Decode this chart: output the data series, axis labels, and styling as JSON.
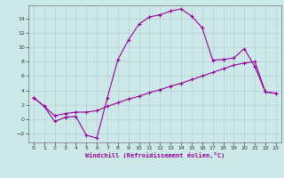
{
  "xlabel": "Windchill (Refroidissement éolien,°C)",
  "line_color": "#990099",
  "bg_color": "#cce8e8",
  "grid_color": "#aacccc",
  "ylim": [
    -3.2,
    15.8
  ],
  "xlim": [
    -0.5,
    23.5
  ],
  "yticks": [
    -2,
    0,
    2,
    4,
    6,
    8,
    10,
    12,
    14
  ],
  "xticks": [
    0,
    1,
    2,
    3,
    4,
    5,
    6,
    7,
    8,
    9,
    10,
    11,
    12,
    13,
    14,
    15,
    16,
    17,
    18,
    19,
    20,
    21,
    22,
    23
  ],
  "windchill_x": [
    0,
    1,
    2,
    3,
    4,
    5,
    6,
    7,
    8,
    9,
    10,
    11,
    12,
    13,
    14,
    15,
    16,
    17,
    18,
    19,
    20,
    21,
    22,
    23
  ],
  "windchill_y": [
    3.0,
    1.8,
    -0.3,
    0.3,
    0.4,
    -2.2,
    -2.6,
    3.0,
    8.3,
    11.0,
    13.2,
    14.2,
    14.5,
    15.0,
    15.3,
    14.3,
    12.7,
    8.2,
    8.3,
    8.5,
    9.8,
    7.3,
    3.8,
    3.6
  ],
  "temperature_x": [
    0,
    1,
    2,
    3,
    4,
    5,
    6,
    7,
    8,
    9,
    10,
    11,
    12,
    13,
    14,
    15,
    16,
    17,
    18,
    19,
    20,
    21,
    22,
    23
  ],
  "temperature_y": [
    3.0,
    1.8,
    0.5,
    0.8,
    1.0,
    1.0,
    1.2,
    1.8,
    2.3,
    2.8,
    3.2,
    3.7,
    4.1,
    4.6,
    5.0,
    5.5,
    6.0,
    6.5,
    7.0,
    7.5,
    7.8,
    8.0,
    3.8,
    3.6
  ]
}
